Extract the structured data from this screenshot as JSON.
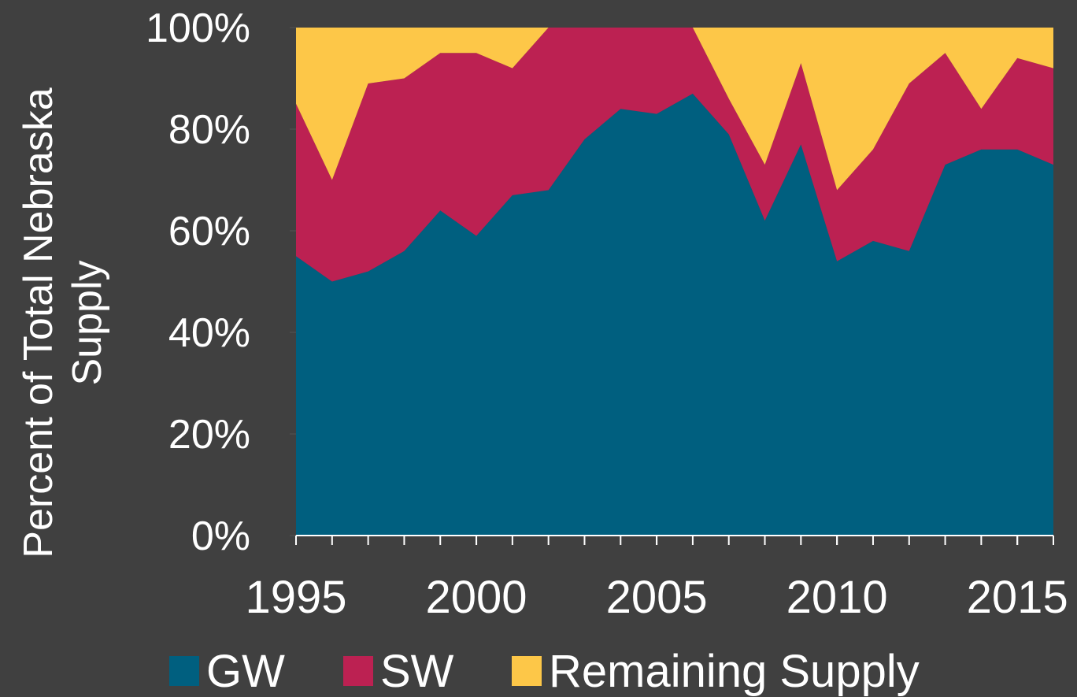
{
  "chart_data": {
    "type": "stacked-area",
    "ylabel": "Percent of Total Nebraska Supply",
    "x": [
      1995,
      1996,
      1997,
      1998,
      1999,
      2000,
      2001,
      2002,
      2003,
      2004,
      2005,
      2006,
      2007,
      2008,
      2009,
      2010,
      2011,
      2012,
      2013,
      2014,
      2015,
      2016
    ],
    "series": [
      {
        "name": "GW",
        "color": "#005f7f",
        "values": [
          55,
          50,
          52,
          56,
          64,
          59,
          67,
          68,
          78,
          84,
          83,
          87,
          79,
          62,
          77,
          54,
          58,
          56,
          73,
          76,
          76,
          73
        ]
      },
      {
        "name": "SW",
        "color": "#bc2152",
        "values": [
          30,
          20,
          37,
          34,
          31,
          36,
          25,
          32,
          22,
          16,
          17,
          13,
          7,
          11,
          16,
          14,
          18,
          33,
          22,
          8,
          18,
          19
        ]
      },
      {
        "name": "Remaining Supply",
        "color": "#fdc748",
        "values": [
          15,
          30,
          11,
          10,
          5,
          5,
          8,
          0,
          0,
          0,
          0,
          0,
          14,
          27,
          7,
          32,
          24,
          11,
          5,
          16,
          6,
          8
        ]
      }
    ],
    "xlim": [
      1995,
      2016
    ],
    "xticks": [
      1995,
      2000,
      2005,
      2010,
      2015
    ],
    "ylim": [
      0,
      100
    ],
    "yticks": [
      {
        "value": 0,
        "label": "0%"
      },
      {
        "value": 20,
        "label": "20%"
      },
      {
        "value": 40,
        "label": "40%"
      },
      {
        "value": 60,
        "label": "60%"
      },
      {
        "value": 80,
        "label": "80%"
      },
      {
        "value": 100,
        "label": "100%"
      }
    ]
  }
}
